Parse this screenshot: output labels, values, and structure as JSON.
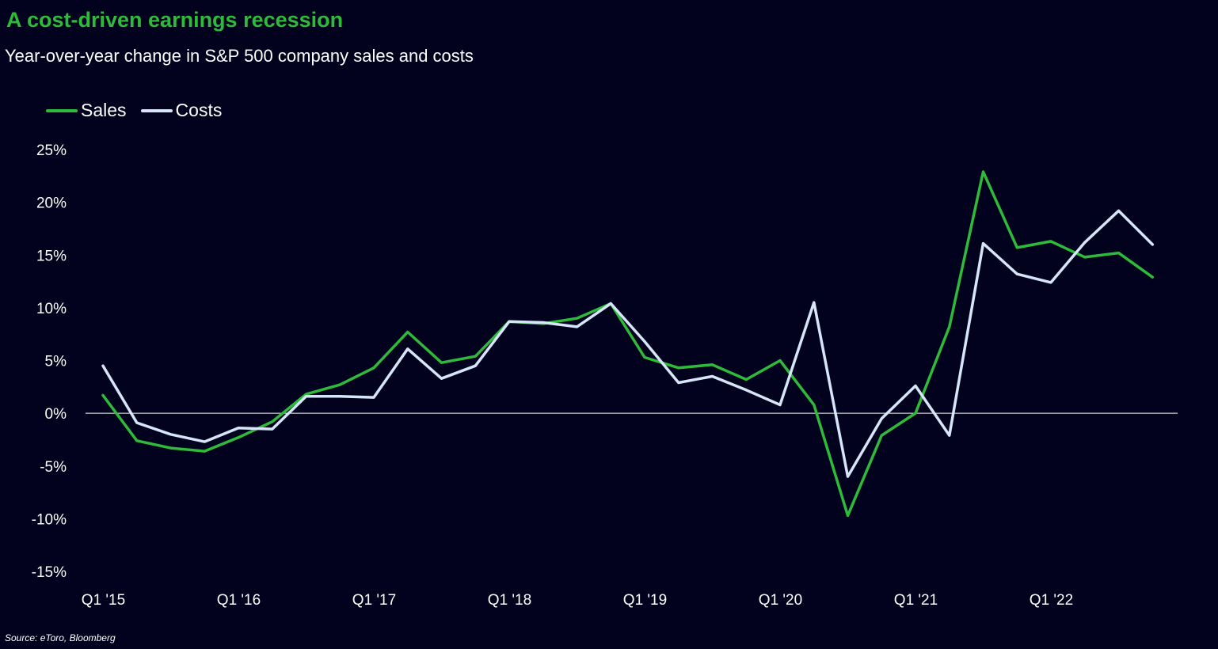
{
  "title": "A cost-driven earnings recession",
  "subtitle": "Year-over-year change in S&P 500 company sales and costs",
  "source": "Source: eToro, Bloomberg",
  "colors": {
    "background": "#02021e",
    "sales": "#2dbb39",
    "costs": "#d6e6f8",
    "zero_line": "#ffffff"
  },
  "chart_data": {
    "type": "line",
    "title": "A cost-driven earnings recession",
    "subtitle": "Year-over-year change in S&P 500 company sales and costs",
    "legend_position": "top-left",
    "grid": false,
    "ylim": [
      -15,
      25
    ],
    "yticks": [
      25,
      20,
      15,
      10,
      5,
      0,
      -5,
      -10,
      -15
    ],
    "ytick_labels": [
      "25%",
      "20%",
      "15%",
      "10%",
      "5%",
      "0%",
      "-5%",
      "-10%",
      "-15%"
    ],
    "x": [
      "Q1 '15",
      "Q2 '15",
      "Q3 '15",
      "Q4 '15",
      "Q1 '16",
      "Q2 '16",
      "Q3 '16",
      "Q4 '16",
      "Q1 '17",
      "Q2 '17",
      "Q3 '17",
      "Q4 '17",
      "Q1 '18",
      "Q2 '18",
      "Q3 '18",
      "Q4 '18",
      "Q1 '19",
      "Q2 '19",
      "Q3 '19",
      "Q4 '19",
      "Q1 '20",
      "Q2 '20",
      "Q3 '20",
      "Q4 '20",
      "Q1 '21",
      "Q2 '21",
      "Q3 '21",
      "Q4 '21",
      "Q1 '22",
      "Q2 '22",
      "Q3 '22",
      "Q4 '22"
    ],
    "xtick_labels": [
      {
        "index": 0,
        "label": "Q1 '15"
      },
      {
        "index": 4,
        "label": "Q1 '16"
      },
      {
        "index": 8,
        "label": "Q1 '17"
      },
      {
        "index": 12,
        "label": "Q1 '18"
      },
      {
        "index": 16,
        "label": "Q1 '19"
      },
      {
        "index": 20,
        "label": "Q1 '20"
      },
      {
        "index": 24,
        "label": "Q1 '21"
      },
      {
        "index": 28,
        "label": "Q1 '22"
      }
    ],
    "series": [
      {
        "name": "Sales",
        "color": "#2dbb39",
        "values": [
          1.7,
          -2.6,
          -3.3,
          -3.6,
          -2.3,
          -0.8,
          1.8,
          2.7,
          4.3,
          7.7,
          4.8,
          5.4,
          8.7,
          8.5,
          9.0,
          10.4,
          5.3,
          4.3,
          4.6,
          3.2,
          5.0,
          0.8,
          -9.7,
          -2.1,
          0.0,
          8.2,
          22.9,
          15.7,
          16.3,
          14.8,
          15.2,
          12.9
        ]
      },
      {
        "name": "Costs",
        "color": "#d6e6f8",
        "values": [
          4.5,
          -0.9,
          -2.0,
          -2.7,
          -1.4,
          -1.5,
          1.6,
          1.6,
          1.5,
          6.1,
          3.3,
          4.5,
          8.7,
          8.6,
          8.2,
          10.4,
          6.8,
          2.9,
          3.5,
          2.2,
          0.8,
          10.5,
          -6.0,
          -0.5,
          2.6,
          -2.1,
          16.1,
          13.2,
          12.4,
          16.2,
          19.2,
          16.0
        ]
      }
    ]
  }
}
